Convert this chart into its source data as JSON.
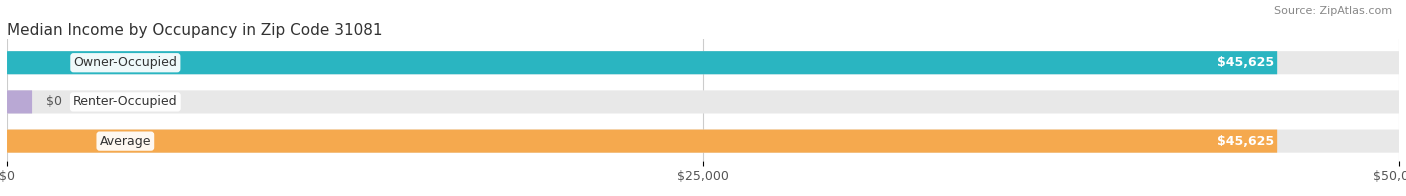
{
  "title": "Median Income by Occupancy in Zip Code 31081",
  "source": "Source: ZipAtlas.com",
  "categories": [
    "Owner-Occupied",
    "Renter-Occupied",
    "Average"
  ],
  "values": [
    45625,
    0,
    45625
  ],
  "bar_colors": [
    "#2ab5c1",
    "#b9a8d4",
    "#f5a94e"
  ],
  "bar_bg_color": "#e8e8e8",
  "value_labels": [
    "$45,625",
    "$0",
    "$45,625"
  ],
  "x_ticks": [
    0,
    25000,
    50000
  ],
  "x_tick_labels": [
    "$0",
    "$25,000",
    "$50,000"
  ],
  "xlim": [
    0,
    50000
  ],
  "bar_height": 0.55,
  "title_fontsize": 11,
  "label_fontsize": 9,
  "tick_fontsize": 9,
  "source_fontsize": 8,
  "background_color": "#ffffff"
}
